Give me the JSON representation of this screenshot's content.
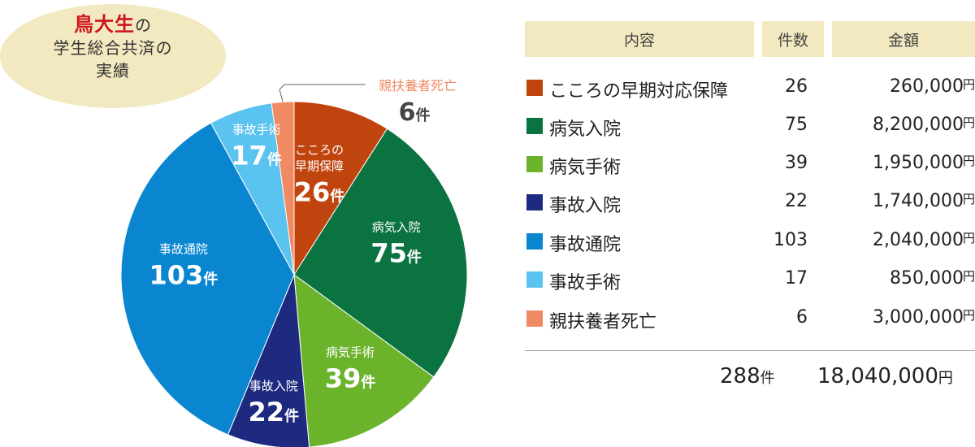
{
  "title": {
    "line1_emph": "鳥大生",
    "line1_rest": "の",
    "line2": "学生総合共済の",
    "line3": "実績"
  },
  "table": {
    "headers": {
      "content": "内容",
      "count": "件数",
      "amount": "金額"
    },
    "yen": "円",
    "total": {
      "count": "288",
      "count_unit": "件",
      "amount": "18,040,000",
      "amount_unit": "円"
    }
  },
  "chart_data": {
    "type": "pie",
    "unit": "件",
    "start_angle_deg": 0,
    "direction": "clockwise",
    "slices": [
      {
        "name": "こころの早期対応保障",
        "pie_label": [
          "こころの",
          "早期保障"
        ],
        "count": 26,
        "count_text": "26",
        "amount": "260,000",
        "color": "#c0440e",
        "label_color": "#ffffff"
      },
      {
        "name": "病気入院",
        "pie_label": [
          "病気入院"
        ],
        "count": 75,
        "count_text": "75",
        "amount": "8,200,000",
        "color": "#0b7340",
        "label_color": "#ffffff"
      },
      {
        "name": "病気手術",
        "pie_label": [
          "病気手術"
        ],
        "count": 39,
        "count_text": "39",
        "amount": "1,950,000",
        "color": "#6cb32c",
        "label_color": "#ffffff"
      },
      {
        "name": "事故入院",
        "pie_label": [
          "事故入院"
        ],
        "count": 22,
        "count_text": "22",
        "amount": "1,740,000",
        "color": "#1e2a7f",
        "label_color": "#ffffff"
      },
      {
        "name": "事故通院",
        "pie_label": [
          "事故通院"
        ],
        "count": 103,
        "count_text": "103",
        "amount": "2,040,000",
        "color": "#0a86d0",
        "label_color": "#ffffff"
      },
      {
        "name": "事故手術",
        "pie_label": [
          "事故手術"
        ],
        "count": 17,
        "count_text": "17",
        "amount": "850,000",
        "color": "#5bc3ef",
        "label_color": "#ffffff"
      },
      {
        "name": "親扶養者死亡",
        "pie_label": [
          "親扶養者死亡"
        ],
        "count": 6,
        "count_text": "6",
        "amount": "3,000,000",
        "color": "#ef8a62",
        "label_color": "#ef8a62",
        "external_label": true
      }
    ]
  }
}
